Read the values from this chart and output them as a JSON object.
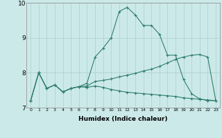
{
  "xlabel": "Humidex (Indice chaleur)",
  "xlim": [
    -0.5,
    23.5
  ],
  "ylim": [
    7,
    10
  ],
  "yticks": [
    7,
    8,
    9,
    10
  ],
  "xticks": [
    0,
    1,
    2,
    3,
    4,
    5,
    6,
    7,
    8,
    9,
    10,
    11,
    12,
    13,
    14,
    15,
    16,
    17,
    18,
    19,
    20,
    21,
    22,
    23
  ],
  "bg_color": "#cce9e9",
  "line_color": "#2e7d6e",
  "grid_color": "#aacfcf",
  "lines": [
    {
      "x": [
        0,
        1,
        2,
        3,
        4,
        5,
        6,
        7,
        8,
        9,
        10,
        11,
        12,
        13,
        14,
        15,
        16,
        17,
        18,
        19,
        20,
        21,
        22,
        23
      ],
      "y": [
        7.2,
        8.0,
        7.55,
        7.65,
        7.45,
        7.55,
        7.6,
        7.7,
        8.45,
        8.7,
        9.0,
        9.75,
        9.87,
        9.65,
        9.35,
        9.35,
        9.1,
        8.5,
        8.5,
        7.8,
        7.4,
        7.25,
        7.2,
        7.2
      ]
    },
    {
      "x": [
        0,
        1,
        2,
        3,
        4,
        5,
        6,
        7,
        8,
        9,
        10,
        11,
        12,
        13,
        14,
        15,
        16,
        17,
        18,
        19,
        20,
        21,
        22,
        23
      ],
      "y": [
        7.2,
        8.0,
        7.55,
        7.65,
        7.45,
        7.55,
        7.6,
        7.62,
        7.75,
        7.78,
        7.82,
        7.88,
        7.93,
        7.98,
        8.05,
        8.1,
        8.18,
        8.28,
        8.38,
        8.45,
        8.5,
        8.52,
        8.45,
        7.2
      ]
    },
    {
      "x": [
        0,
        1,
        2,
        3,
        4,
        5,
        6,
        7,
        8,
        9,
        10,
        11,
        12,
        13,
        14,
        15,
        16,
        17,
        18,
        19,
        20,
        21,
        22,
        23
      ],
      "y": [
        7.2,
        8.0,
        7.55,
        7.65,
        7.45,
        7.55,
        7.6,
        7.58,
        7.62,
        7.58,
        7.52,
        7.48,
        7.44,
        7.42,
        7.4,
        7.38,
        7.36,
        7.34,
        7.32,
        7.28,
        7.26,
        7.24,
        7.22,
        7.2
      ]
    }
  ]
}
